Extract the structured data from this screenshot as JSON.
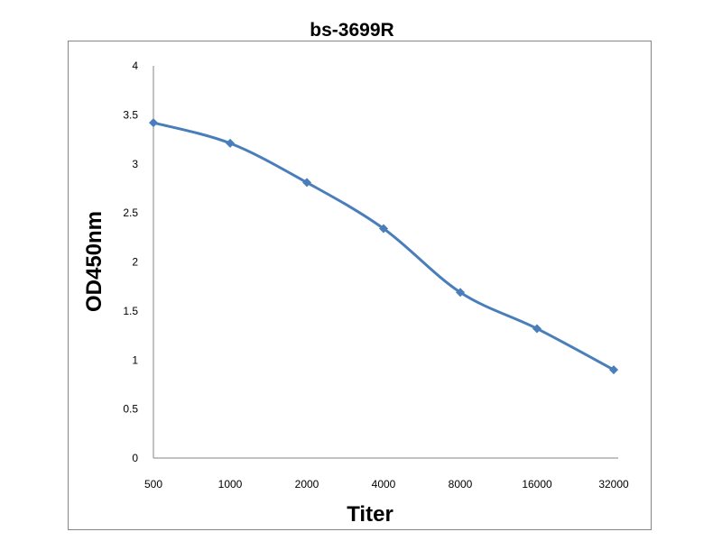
{
  "chart_data": {
    "type": "line",
    "title": "bs-3699R",
    "xlabel": "Titer",
    "ylabel": "OD450nm",
    "categories": [
      "500",
      "1000",
      "2000",
      "4000",
      "8000",
      "16000",
      "32000"
    ],
    "series": [
      {
        "name": "bs-3699R",
        "values": [
          3.42,
          3.21,
          2.81,
          2.34,
          1.69,
          1.32,
          0.9
        ],
        "color": "#4a7ebb",
        "marker": "diamond",
        "smooth": true
      }
    ],
    "ylim": [
      0,
      4
    ],
    "yticks": [
      "0",
      "0.5",
      "1",
      "1.5",
      "2",
      "2.5",
      "3",
      "3.5",
      "4"
    ],
    "grid": false,
    "legend": "none"
  }
}
